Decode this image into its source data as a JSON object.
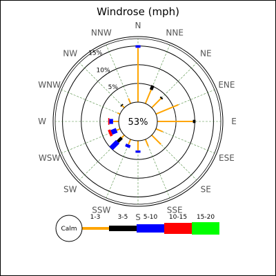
{
  "chart_data": {
    "type": "windrose",
    "title": "Windrose (mph)",
    "directions": [
      "N",
      "NNE",
      "NE",
      "ENE",
      "E",
      "ESE",
      "SE",
      "SSE",
      "S",
      "SSW",
      "SW",
      "WSW",
      "W",
      "WNW",
      "NW",
      "NNW"
    ],
    "ring_labels": [
      "5%",
      "10%",
      "15%"
    ],
    "ring_values": [
      5,
      10,
      15
    ],
    "rmax_percent": 17.5,
    "calm": {
      "label": "Calm",
      "percent_label": "53%",
      "percent": 53
    },
    "bins": [
      {
        "label": "1-3",
        "color": "#ffa500"
      },
      {
        "label": "3-5",
        "color": "#000000"
      },
      {
        "label": "5-10",
        "color": "#0000ff"
      },
      {
        "label": "10-15",
        "color": "#ff0000"
      },
      {
        "label": "15-20",
        "color": "#00ff00"
      }
    ],
    "series": [
      {
        "direction": "N",
        "values": [
          14.5,
          0.0,
          0.7,
          0.0,
          0.0
        ]
      },
      {
        "direction": "NNE",
        "values": [
          4.0,
          1.2,
          0.0,
          0.0,
          0.0
        ]
      },
      {
        "direction": "NE",
        "values": [
          3.5,
          0.4,
          0.0,
          0.0,
          0.0
        ]
      },
      {
        "direction": "ENE",
        "values": [
          6.5,
          0.0,
          0.0,
          0.0,
          0.0
        ]
      },
      {
        "direction": "E",
        "values": [
          9.5,
          0.7,
          0.0,
          0.0,
          0.0
        ]
      },
      {
        "direction": "ESE",
        "values": [
          2.0,
          0.0,
          0.0,
          0.0,
          0.0
        ]
      },
      {
        "direction": "SE",
        "values": [
          3.5,
          0.0,
          0.0,
          0.0,
          0.0
        ]
      },
      {
        "direction": "SSE",
        "values": [
          2.0,
          0.0,
          0.0,
          0.0,
          0.0
        ]
      },
      {
        "direction": "S",
        "values": [
          2.6,
          0.0,
          0.6,
          0.0,
          0.0
        ]
      },
      {
        "direction": "SSW",
        "values": [
          1.5,
          0.0,
          0.8,
          0.0,
          0.0
        ]
      },
      {
        "direction": "SW",
        "values": [
          1.0,
          1.5,
          2.5,
          0.0,
          0.0
        ]
      },
      {
        "direction": "WSW",
        "values": [
          1.0,
          0.0,
          1.5,
          0.7,
          0.0
        ]
      },
      {
        "direction": "W",
        "values": [
          1.5,
          0.0,
          1.0,
          0.3,
          0.0
        ]
      },
      {
        "direction": "WNW",
        "values": [
          0.8,
          0.0,
          0.0,
          0.0,
          0.0
        ]
      },
      {
        "direction": "NW",
        "values": [
          0.8,
          0.3,
          0.0,
          0.0,
          0.0
        ]
      },
      {
        "direction": "NNW",
        "values": [
          1.5,
          0.0,
          0.0,
          0.0,
          0.0
        ]
      }
    ]
  }
}
